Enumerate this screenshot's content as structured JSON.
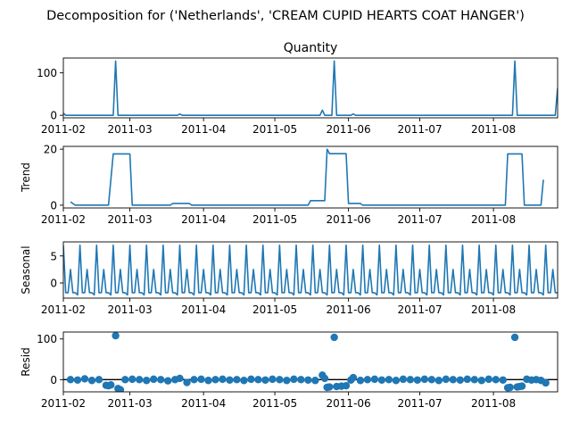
{
  "figure": {
    "suptitle": "Decomposition for ('Netherlands', 'CREAM CUPID HEARTS COAT HANGER')",
    "line_color": "#1f77b4",
    "zero_line_color": "#000000"
  },
  "chart_data": [
    {
      "type": "line",
      "title": "Quantity",
      "ylabel": "",
      "xlim": [
        "2011-02-01",
        "2011-08-28"
      ],
      "x_ticks": [
        "2011-02",
        "2011-03",
        "2011-04",
        "2011-05",
        "2011-06",
        "2011-07",
        "2011-08"
      ],
      "ylim": [
        -6,
        135
      ],
      "y_ticks": [
        0,
        100
      ],
      "series": [
        {
          "points": [
            [
              "2011-02-01",
              5
            ],
            [
              "2011-02-02",
              0
            ],
            [
              "2011-02-22",
              0
            ],
            [
              "2011-02-23",
              128
            ],
            [
              "2011-02-24",
              0
            ],
            [
              "2011-03-21",
              0
            ],
            [
              "2011-03-22",
              3
            ],
            [
              "2011-03-23",
              0
            ],
            [
              "2011-05-20",
              0
            ],
            [
              "2011-05-21",
              12
            ],
            [
              "2011-05-22",
              0
            ],
            [
              "2011-05-25",
              0
            ],
            [
              "2011-05-26",
              128
            ],
            [
              "2011-05-27",
              0
            ],
            [
              "2011-06-02",
              0
            ],
            [
              "2011-06-03",
              3
            ],
            [
              "2011-06-04",
              0
            ],
            [
              "2011-08-09",
              0
            ],
            [
              "2011-08-10",
              128
            ],
            [
              "2011-08-11",
              0
            ],
            [
              "2011-08-27",
              0
            ],
            [
              "2011-08-28",
              64
            ]
          ]
        }
      ]
    },
    {
      "type": "line",
      "title": "",
      "ylabel": "Trend",
      "xlim": [
        "2011-02-01",
        "2011-08-28"
      ],
      "x_ticks": [
        "2011-02",
        "2011-03",
        "2011-04",
        "2011-05",
        "2011-06",
        "2011-07",
        "2011-08"
      ],
      "ylim": [
        -1,
        21
      ],
      "y_ticks": [
        0,
        20
      ],
      "series": [
        {
          "points": [
            [
              "2011-02-04",
              1.2
            ],
            [
              "2011-02-06",
              0
            ],
            [
              "2011-02-20",
              0
            ],
            [
              "2011-02-22",
              18.3
            ],
            [
              "2011-03-01",
              18.3
            ],
            [
              "2011-03-02",
              0
            ],
            [
              "2011-03-18",
              0
            ],
            [
              "2011-03-19",
              0.6
            ],
            [
              "2011-03-26",
              0.6
            ],
            [
              "2011-03-27",
              0
            ],
            [
              "2011-05-15",
              0
            ],
            [
              "2011-05-16",
              1.6
            ],
            [
              "2011-05-22",
              1.6
            ],
            [
              "2011-05-23",
              20
            ],
            [
              "2011-05-24",
              18.4
            ],
            [
              "2011-05-31",
              18.4
            ],
            [
              "2011-06-01",
              0.6
            ],
            [
              "2011-06-06",
              0.6
            ],
            [
              "2011-06-07",
              0
            ],
            [
              "2011-08-06",
              0
            ],
            [
              "2011-08-07",
              18.3
            ],
            [
              "2011-08-13",
              18.3
            ],
            [
              "2011-08-14",
              0
            ],
            [
              "2011-08-21",
              0
            ],
            [
              "2011-08-22",
              9.1
            ]
          ]
        }
      ]
    },
    {
      "type": "line",
      "title": "",
      "ylabel": "Seasonal",
      "xlim": [
        "2011-02-01",
        "2011-08-28"
      ],
      "x_ticks": [
        "2011-02",
        "2011-03",
        "2011-04",
        "2011-05",
        "2011-06",
        "2011-07",
        "2011-08"
      ],
      "ylim": [
        -2.8,
        7.6
      ],
      "y_ticks": [
        0,
        5
      ],
      "series": [
        {
          "period_days": 7,
          "start": "2011-02-01",
          "end": "2011-08-28",
          "weekly_pattern": [
            7.0,
            -1.8,
            -1.8,
            2.5,
            -1.8,
            -1.8,
            -2.2
          ]
        }
      ]
    },
    {
      "type": "scatter",
      "title": "",
      "ylabel": "Resid",
      "xlim": [
        "2011-02-01",
        "2011-08-28"
      ],
      "x_ticks": [
        "2011-02",
        "2011-03",
        "2011-04",
        "2011-05",
        "2011-06",
        "2011-07",
        "2011-08"
      ],
      "ylim": [
        -30,
        117
      ],
      "y_ticks": [
        0,
        100
      ],
      "zero_line": true,
      "series": [
        {
          "points": [
            [
              "2011-02-04",
              0
            ],
            [
              "2011-02-07",
              -1
            ],
            [
              "2011-02-10",
              2
            ],
            [
              "2011-02-13",
              -2
            ],
            [
              "2011-02-16",
              0
            ],
            [
              "2011-02-19",
              -14
            ],
            [
              "2011-02-20",
              -15
            ],
            [
              "2011-02-21",
              -13
            ],
            [
              "2011-02-23",
              108
            ],
            [
              "2011-02-24",
              -22
            ],
            [
              "2011-02-25",
              -25
            ],
            [
              "2011-02-27",
              0
            ],
            [
              "2011-03-02",
              1
            ],
            [
              "2011-03-05",
              0
            ],
            [
              "2011-03-08",
              -2
            ],
            [
              "2011-03-11",
              1
            ],
            [
              "2011-03-14",
              0
            ],
            [
              "2011-03-17",
              -3
            ],
            [
              "2011-03-20",
              0
            ],
            [
              "2011-03-22",
              3
            ],
            [
              "2011-03-25",
              -7
            ],
            [
              "2011-03-28",
              0
            ],
            [
              "2011-03-31",
              1
            ],
            [
              "2011-04-03",
              -2
            ],
            [
              "2011-04-06",
              0
            ],
            [
              "2011-04-09",
              1
            ],
            [
              "2011-04-12",
              -1
            ],
            [
              "2011-04-15",
              0
            ],
            [
              "2011-04-18",
              -2
            ],
            [
              "2011-04-21",
              1
            ],
            [
              "2011-04-24",
              0
            ],
            [
              "2011-04-27",
              -1
            ],
            [
              "2011-04-30",
              1
            ],
            [
              "2011-05-03",
              0
            ],
            [
              "2011-05-06",
              -2
            ],
            [
              "2011-05-09",
              1
            ],
            [
              "2011-05-12",
              0
            ],
            [
              "2011-05-15",
              -1
            ],
            [
              "2011-05-18",
              -2
            ],
            [
              "2011-05-21",
              11
            ],
            [
              "2011-05-22",
              3
            ],
            [
              "2011-05-23",
              -19
            ],
            [
              "2011-05-24",
              -18
            ],
            [
              "2011-05-26",
              104
            ],
            [
              "2011-05-27",
              -17
            ],
            [
              "2011-05-29",
              -16
            ],
            [
              "2011-05-31",
              -15
            ],
            [
              "2011-06-02",
              -1
            ],
            [
              "2011-06-03",
              5
            ],
            [
              "2011-06-06",
              -2
            ],
            [
              "2011-06-09",
              0
            ],
            [
              "2011-06-12",
              1
            ],
            [
              "2011-06-15",
              -1
            ],
            [
              "2011-06-18",
              0
            ],
            [
              "2011-06-21",
              -2
            ],
            [
              "2011-06-24",
              1
            ],
            [
              "2011-06-27",
              0
            ],
            [
              "2011-06-30",
              -1
            ],
            [
              "2011-07-03",
              1
            ],
            [
              "2011-07-06",
              0
            ],
            [
              "2011-07-09",
              -2
            ],
            [
              "2011-07-12",
              1
            ],
            [
              "2011-07-15",
              0
            ],
            [
              "2011-07-18",
              -1
            ],
            [
              "2011-07-21",
              1
            ],
            [
              "2011-07-24",
              0
            ],
            [
              "2011-07-27",
              -2
            ],
            [
              "2011-07-30",
              1
            ],
            [
              "2011-08-02",
              0
            ],
            [
              "2011-08-05",
              -1
            ],
            [
              "2011-08-07",
              -20
            ],
            [
              "2011-08-08",
              -19
            ],
            [
              "2011-08-10",
              104
            ],
            [
              "2011-08-11",
              -18
            ],
            [
              "2011-08-12",
              -17
            ],
            [
              "2011-08-13",
              -16
            ],
            [
              "2011-08-15",
              1
            ],
            [
              "2011-08-17",
              -1
            ],
            [
              "2011-08-19",
              0
            ],
            [
              "2011-08-21",
              -2
            ],
            [
              "2011-08-23",
              -8
            ]
          ]
        }
      ]
    }
  ]
}
